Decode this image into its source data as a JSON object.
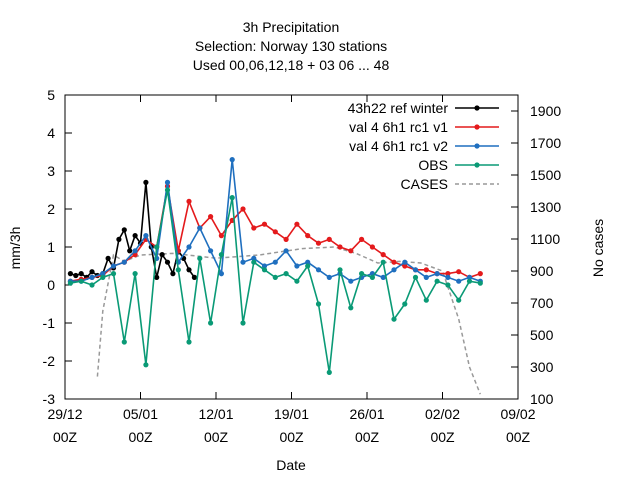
{
  "chart_data": {
    "type": "line",
    "title_lines": [
      "3h Precipitation",
      "Selection: Norway    130 stations",
      "Used  00,06,12,18  + 03 06 ... 48"
    ],
    "xlabel": "Date",
    "ylabel": "mm/3h",
    "y2label": "No cases",
    "xlim": [
      "2012-12-29 00Z",
      "2013-02-09 00Z"
    ],
    "ylim": [
      -3,
      5
    ],
    "y2lim": [
      100,
      2000
    ],
    "x_ticks": [
      {
        "line1": "29/12",
        "line2": "00Z"
      },
      {
        "line1": "05/01",
        "line2": "00Z"
      },
      {
        "line1": "12/01",
        "line2": "00Z"
      },
      {
        "line1": "19/01",
        "line2": "00Z"
      },
      {
        "line1": "26/01",
        "line2": "00Z"
      },
      {
        "line1": "02/02",
        "line2": "00Z"
      },
      {
        "line1": "09/02",
        "line2": "00Z"
      }
    ],
    "y_ticks": [
      "-3",
      "-2",
      "-1",
      "0",
      "1",
      "2",
      "3",
      "4",
      "5"
    ],
    "y2_ticks": [
      "100",
      "300",
      "500",
      "700",
      "900",
      "1100",
      "1300",
      "1500",
      "1700",
      "1900"
    ],
    "legend_position": "top-right",
    "grid": false,
    "series": [
      {
        "name": "43h22 ref winter",
        "color": "#000000",
        "style": "line-points",
        "x": [
          0.5,
          1,
          1.5,
          2,
          2.5,
          3,
          3.5,
          4,
          4.5,
          5,
          5.5,
          6,
          6.5,
          7,
          7.5,
          8,
          8.5,
          9,
          9.5,
          10,
          10.5,
          11,
          11.5,
          12
        ],
        "y": [
          0.3,
          0.25,
          0.3,
          0.2,
          0.35,
          0.25,
          0.3,
          0.7,
          0.45,
          1.2,
          1.45,
          0.9,
          1.3,
          1.1,
          2.7,
          1.0,
          0.2,
          0.8,
          0.6,
          0.3,
          0.9,
          0.7,
          0.4,
          0.2
        ]
      },
      {
        "name": "val 4 6h1 rc1 v1",
        "color": "#e41a1c",
        "style": "line-points",
        "x": [
          0.5,
          1.5,
          2.5,
          3.5,
          4.5,
          5.5,
          6.5,
          7.5,
          8.5,
          9.5,
          10.5,
          11.5,
          12.5,
          13.5,
          14.5,
          15.5,
          16.5,
          17.5,
          18.5,
          19.5,
          20.5,
          21.5,
          22.5,
          23.5,
          24.5,
          25.5,
          26.5,
          27.5,
          28.5,
          29.5,
          30.5,
          31.5,
          32.5,
          33.5,
          34.5,
          35.5,
          36.5,
          37.5,
          38.5
        ],
        "y": [
          0.1,
          0.15,
          0.2,
          0.25,
          0.5,
          0.6,
          0.8,
          1.2,
          1.0,
          2.6,
          0.9,
          2.2,
          1.5,
          1.8,
          1.3,
          1.7,
          2.0,
          1.5,
          1.6,
          1.4,
          1.2,
          1.6,
          1.3,
          1.1,
          1.2,
          1.0,
          0.9,
          1.2,
          1.0,
          0.8,
          0.6,
          0.5,
          0.4,
          0.4,
          0.3,
          0.3,
          0.35,
          0.2,
          0.3
        ]
      },
      {
        "name": "val 4 6h1 rc1 v2",
        "color": "#1f6fbf",
        "style": "line-points",
        "x": [
          0.5,
          1.5,
          2.5,
          3.5,
          4.5,
          5.5,
          6.5,
          7.5,
          8.5,
          9.5,
          10.5,
          11.5,
          12.5,
          13.5,
          14.5,
          15.5,
          16.5,
          17.5,
          18.5,
          19.5,
          20.5,
          21.5,
          22.5,
          23.5,
          24.5,
          25.5,
          26.5,
          27.5,
          28.5,
          29.5,
          30.5,
          31.5,
          32.5,
          33.5,
          34.5,
          35.5,
          36.5,
          37.5,
          38.5
        ],
        "y": [
          0.1,
          0.1,
          0.2,
          0.3,
          0.5,
          0.6,
          0.9,
          1.3,
          0.7,
          2.7,
          0.6,
          1.0,
          1.5,
          0.9,
          0.3,
          3.3,
          0.6,
          0.7,
          0.5,
          0.6,
          0.9,
          0.5,
          0.6,
          0.4,
          0.2,
          0.3,
          0.1,
          0.2,
          0.3,
          0.2,
          0.4,
          0.6,
          0.4,
          0.2,
          0.3,
          0.2,
          0.1,
          0.2,
          0.1
        ]
      },
      {
        "name": "OBS",
        "color": "#0a9a76",
        "style": "line-points",
        "x": [
          0.5,
          1.5,
          2.5,
          3.5,
          4.5,
          5.5,
          6.5,
          7.5,
          8.5,
          9.5,
          10.5,
          11.5,
          12.5,
          13.5,
          14.5,
          15.5,
          16.5,
          17.5,
          18.5,
          19.5,
          20.5,
          21.5,
          22.5,
          23.5,
          24.5,
          25.5,
          26.5,
          27.5,
          28.5,
          29.5,
          30.5,
          31.5,
          32.5,
          33.5,
          34.5,
          35.5,
          36.5,
          37.5,
          38.5
        ],
        "y": [
          0.05,
          0.1,
          0.0,
          0.2,
          0.3,
          -1.5,
          0.3,
          -2.1,
          1.0,
          2.5,
          0.4,
          -1.5,
          0.7,
          -1.0,
          0.8,
          2.3,
          -1.0,
          0.6,
          0.4,
          0.2,
          0.3,
          0.1,
          0.5,
          -0.5,
          -2.3,
          0.4,
          -0.6,
          0.3,
          0.2,
          0.6,
          -0.9,
          -0.5,
          0.2,
          -0.4,
          0.1,
          0.0,
          -0.4,
          0.1,
          0.05
        ]
      }
    ],
    "cases": {
      "name": "CASES",
      "color": "#999999",
      "style": "dashed",
      "axis": "y2",
      "x": [
        3,
        3.5,
        4.5,
        5.5,
        7,
        10,
        14,
        18,
        22,
        25,
        27,
        29,
        31,
        33,
        35,
        36.5,
        37.5,
        38.5
      ],
      "y": [
        240,
        650,
        1000,
        960,
        1000,
        1010,
        980,
        1000,
        1040,
        1050,
        1010,
        950,
        960,
        950,
        900,
        600,
        300,
        130
      ]
    }
  }
}
